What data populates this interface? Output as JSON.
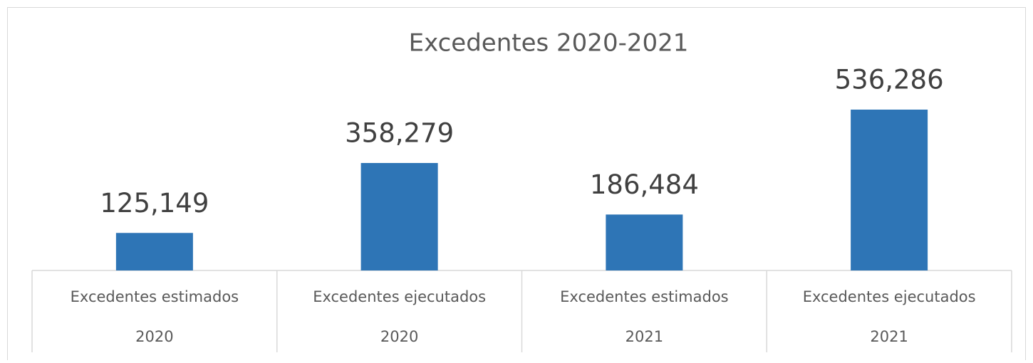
{
  "chart_data": {
    "type": "bar",
    "title": "Excedentes 2020-2021",
    "categories": [
      [
        "Excedentes estimados",
        "2020"
      ],
      [
        "Excedentes ejecutados",
        "2020"
      ],
      [
        "Excedentes estimados",
        "2021"
      ],
      [
        "Excedentes ejecutados",
        "2021"
      ]
    ],
    "values": [
      125149,
      358279,
      186484,
      536286
    ],
    "value_labels": [
      "125,149",
      "358,279",
      "186,484",
      "536,286"
    ],
    "color": "#2e75b6"
  }
}
